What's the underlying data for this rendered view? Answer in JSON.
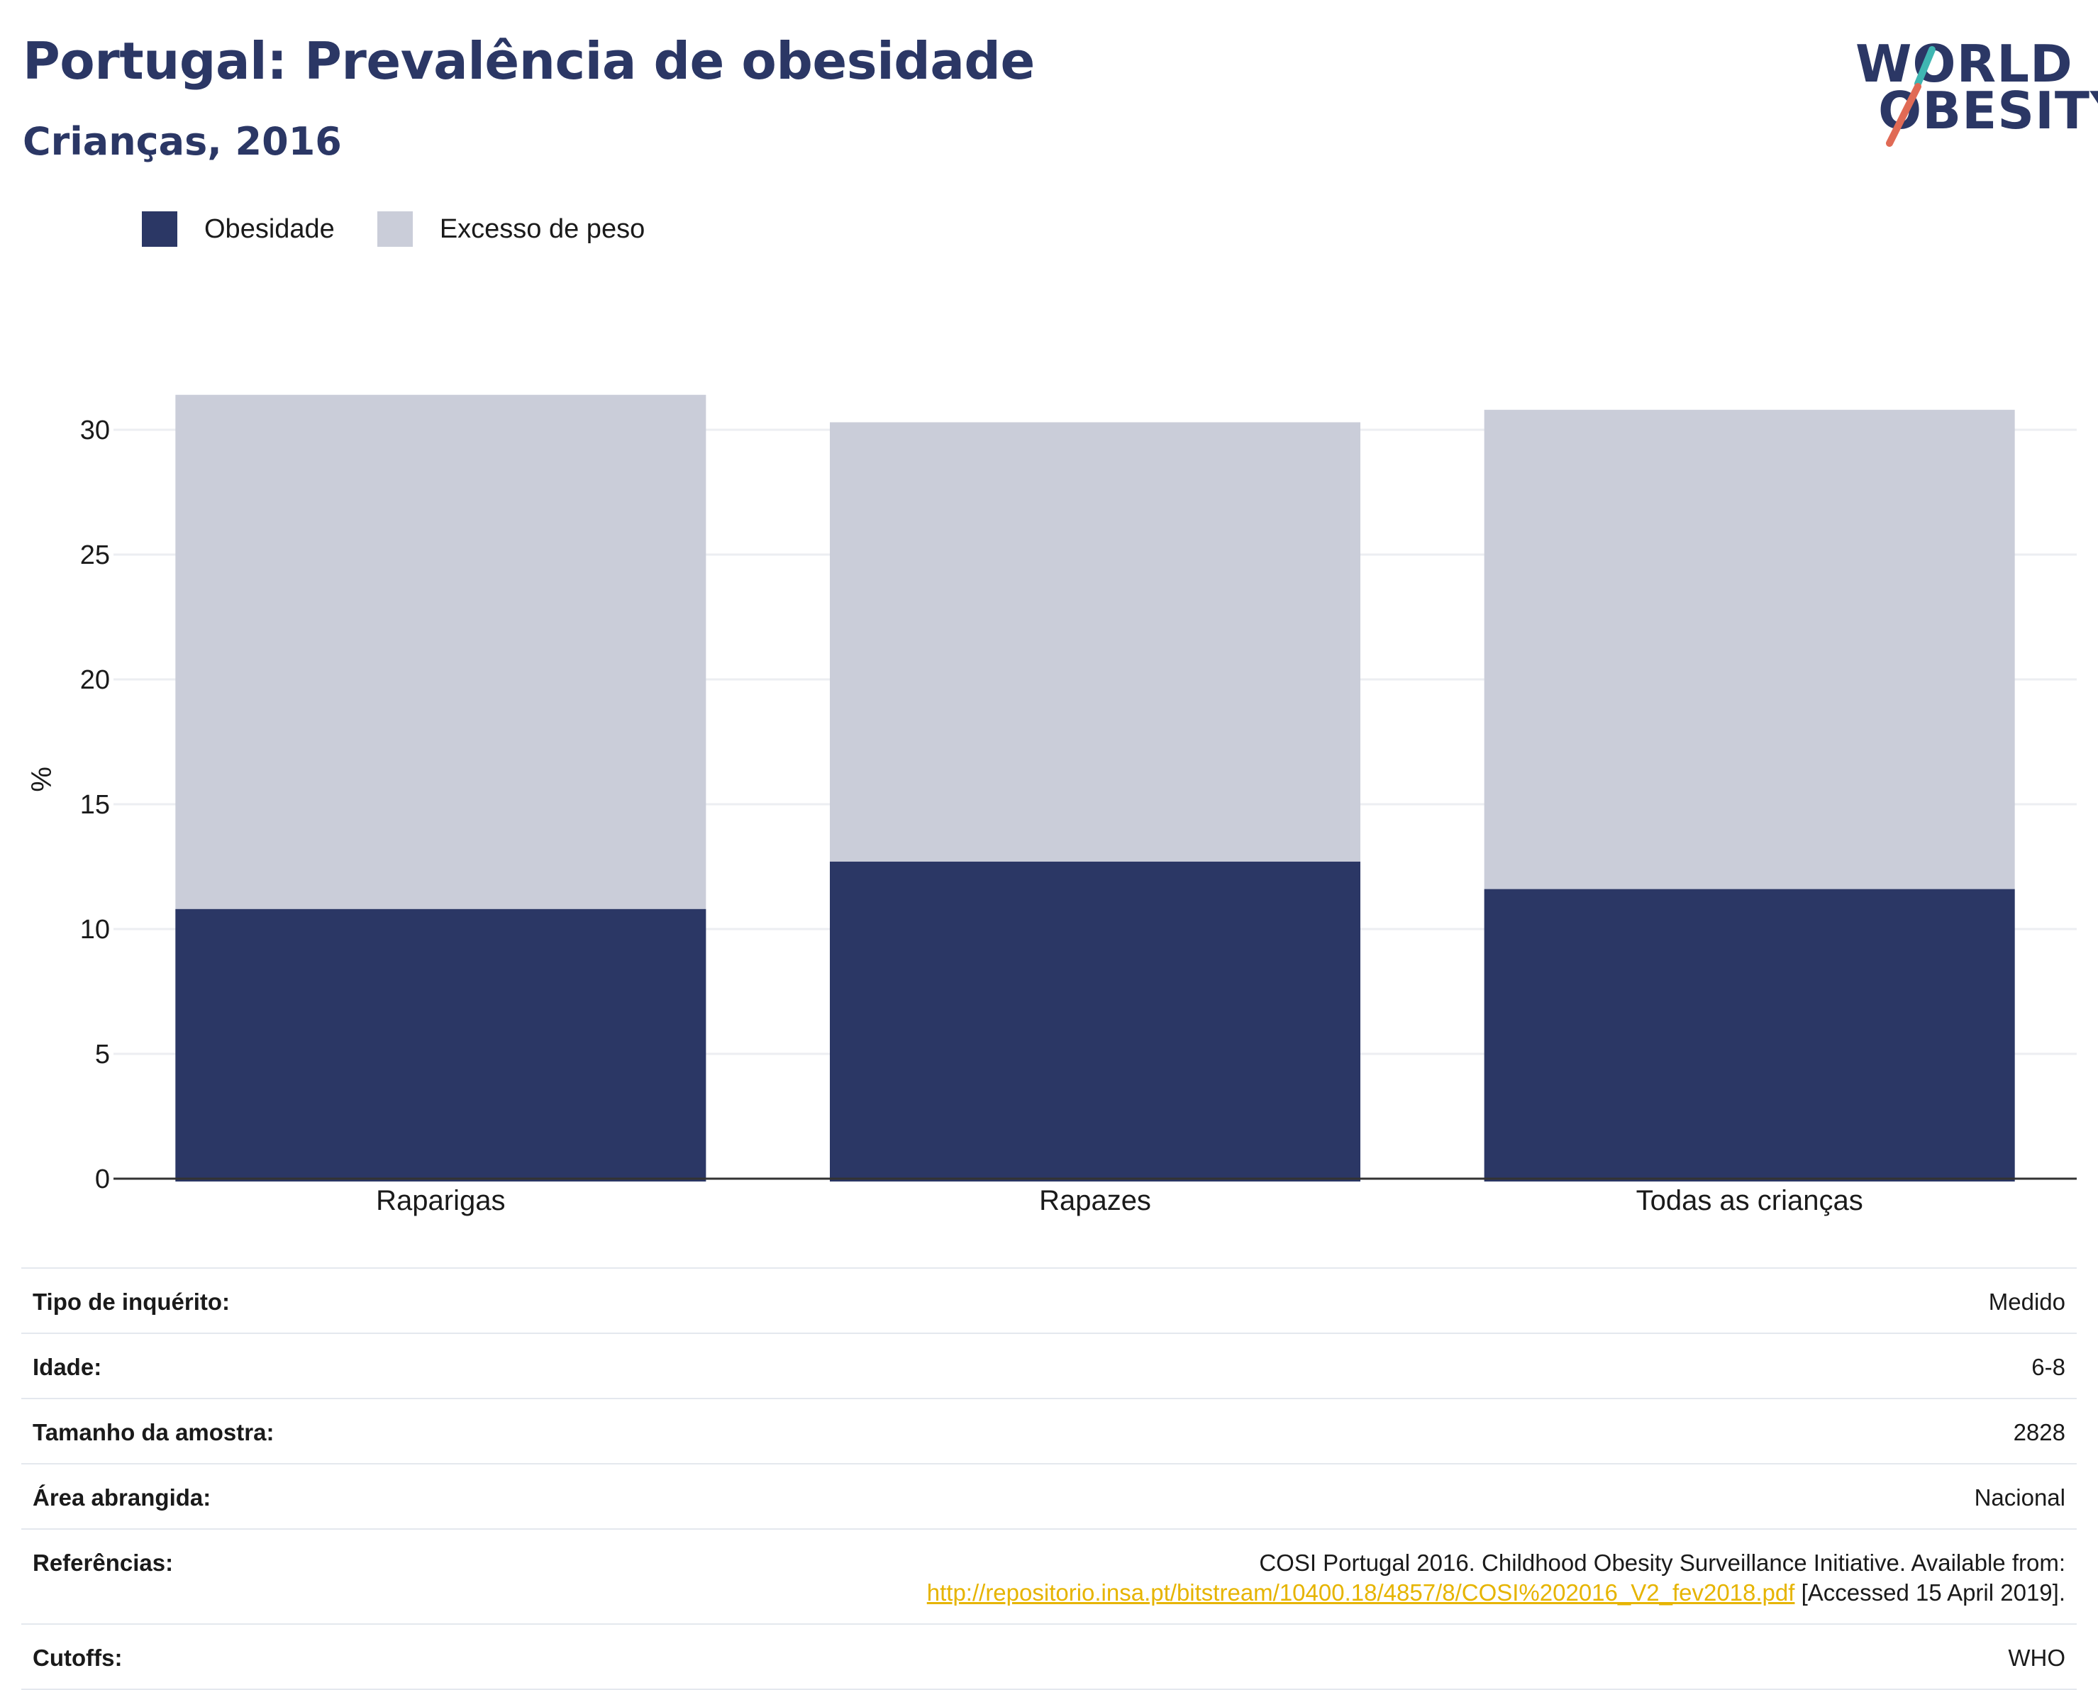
{
  "header": {
    "title": "Portugal: Prevalência de obesidade",
    "subtitle": "Crianças, 2016"
  },
  "logo": {
    "line1": "WORLD",
    "line2": "OBESITY",
    "slash_colors": [
      "#3fb6b2",
      "#e06a55"
    ]
  },
  "colors": {
    "obesity": "#2b3765",
    "overweight": "#cacdd9",
    "axis": "#333333",
    "grid": "#eceef2",
    "link": "#e6b400"
  },
  "chart_data": {
    "type": "bar",
    "stacked": false,
    "overlapped": true,
    "categories": [
      "Raparigas",
      "Rapazes",
      "Todas as crianças"
    ],
    "series": [
      {
        "name": "Excesso de peso",
        "values": [
          31.4,
          30.3,
          30.8
        ]
      },
      {
        "name": "Obesidade",
        "values": [
          10.8,
          12.7,
          11.6
        ]
      }
    ],
    "ylabel": "%",
    "xlabel": "",
    "ylim": [
      0,
      32
    ],
    "yticks": [
      0,
      5,
      10,
      15,
      20,
      25,
      30
    ],
    "grid": true,
    "legend": "top-left"
  },
  "legend": {
    "items": [
      {
        "label": "Obesidade",
        "color": "#2b3765"
      },
      {
        "label": "Excesso de peso",
        "color": "#cacdd9"
      }
    ]
  },
  "info": {
    "survey_type": {
      "label": "Tipo de inquérito:",
      "value": "Medido"
    },
    "age": {
      "label": "Idade:",
      "value": "6-8"
    },
    "sample_size": {
      "label": "Tamanho da amostra:",
      "value": "2828"
    },
    "area": {
      "label": "Área abrangida:",
      "value": "Nacional"
    },
    "references": {
      "label": "Referências:",
      "text": "COSI Portugal 2016. Childhood Obesity Surveillance Initiative. Available from:",
      "link": "http://repositorio.insa.pt/bitstream/10400.18/4857/8/COSI%202016_V2_fev2018.pdf",
      "accessed": " [Accessed 15 April 2019]."
    },
    "cutoffs": {
      "label": "Cutoffs:",
      "value": "WHO"
    }
  }
}
